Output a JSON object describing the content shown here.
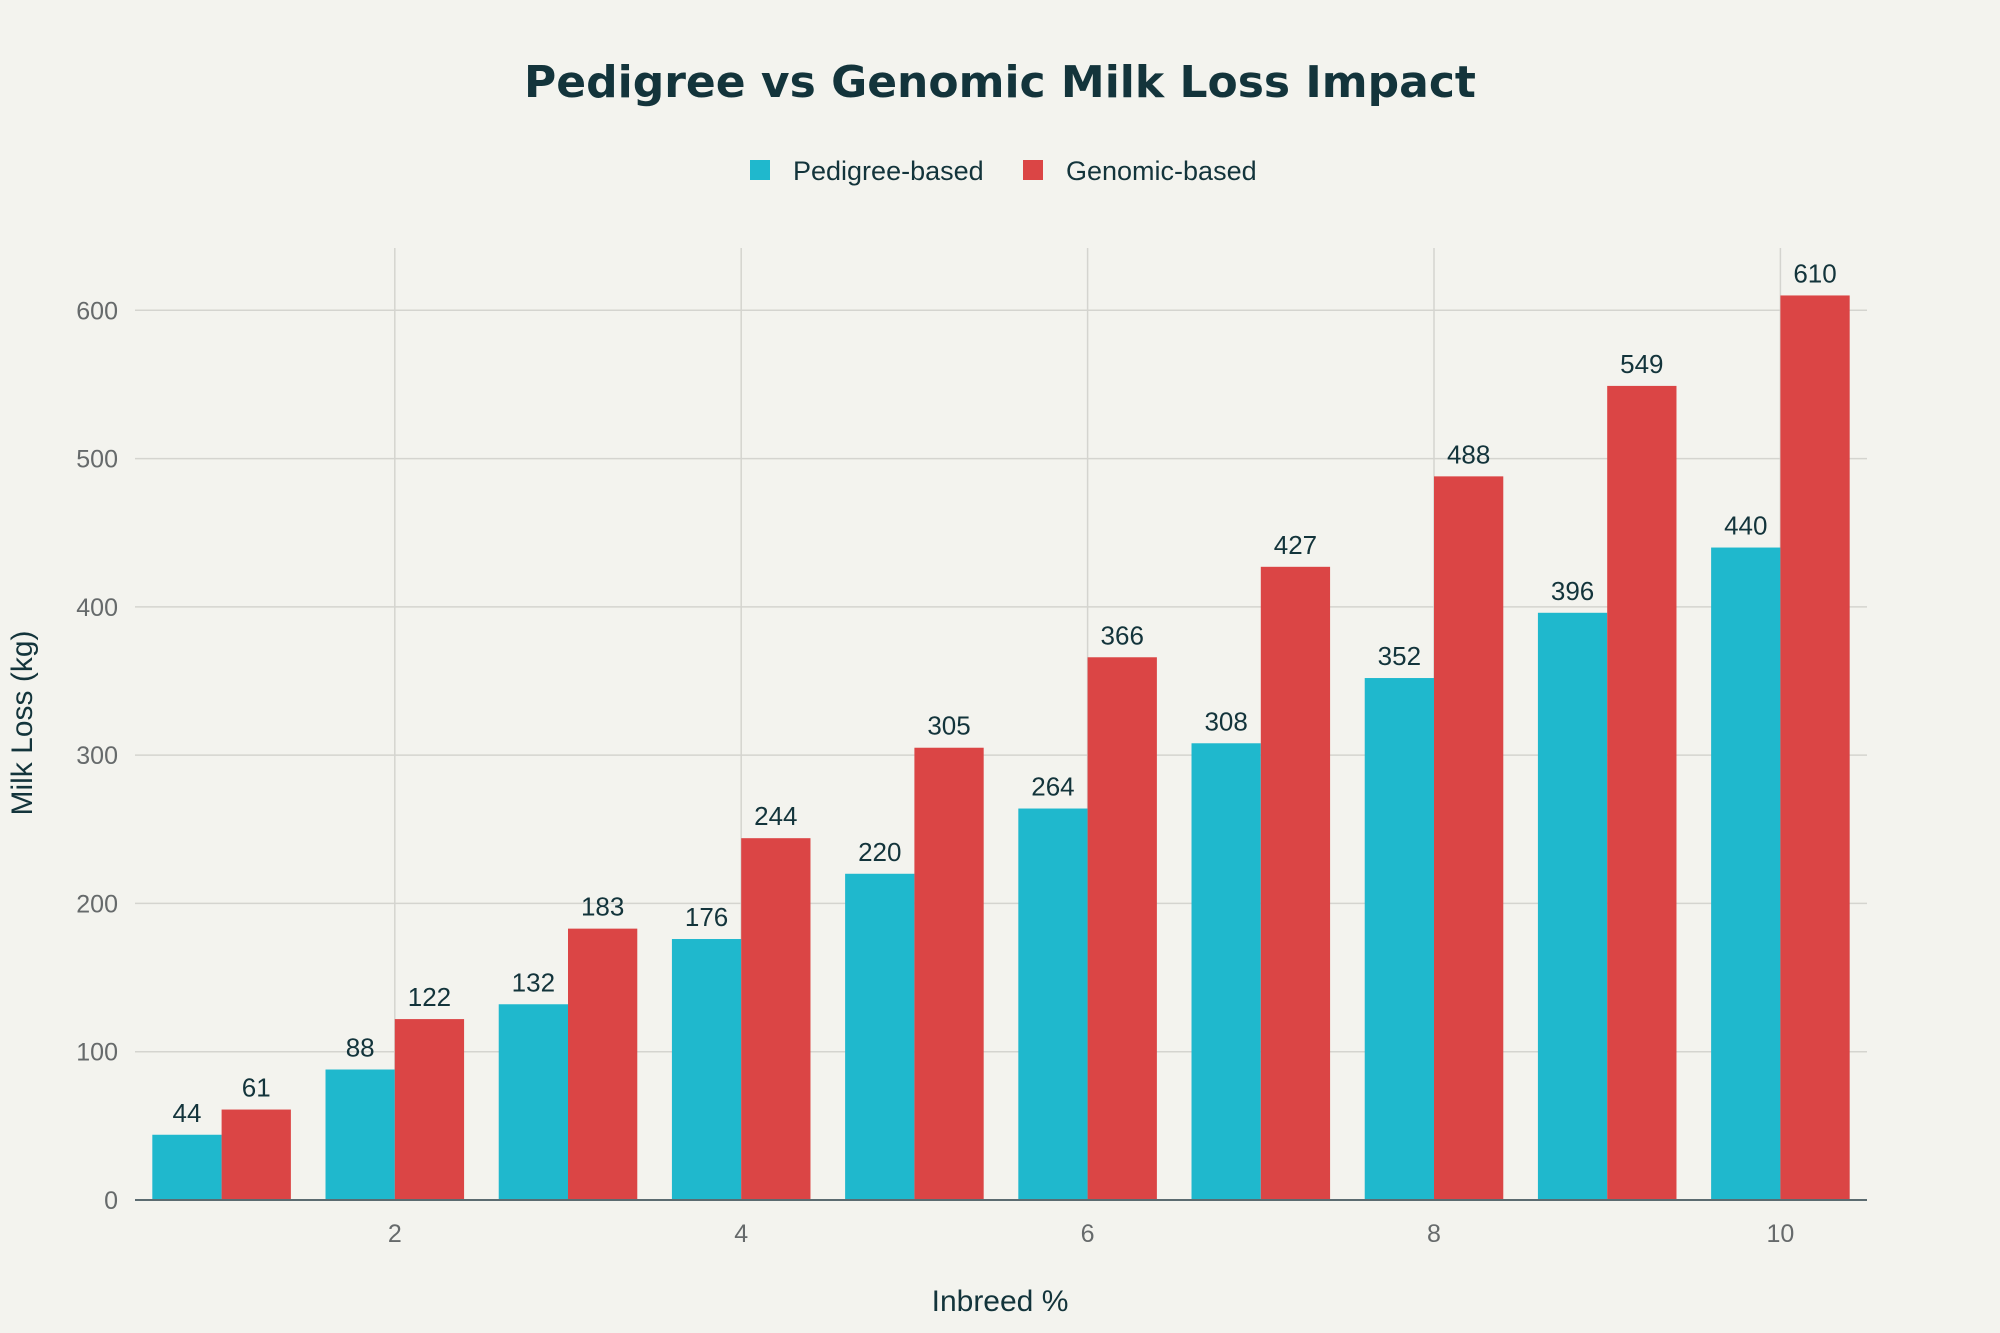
{
  "chart_data": {
    "type": "bar",
    "title": "Pedigree vs Genomic Milk Loss Impact",
    "xlabel": "Inbreed %",
    "ylabel": "Milk Loss (kg)",
    "x": [
      1,
      2,
      3,
      4,
      5,
      6,
      7,
      8,
      9,
      10
    ],
    "xticks": [
      2,
      4,
      6,
      8,
      10
    ],
    "yticks": [
      0,
      100,
      200,
      300,
      400,
      500,
      600
    ],
    "xlim": [
      -0.5,
      9.5
    ],
    "ylim": [
      0,
      642
    ],
    "grid": true,
    "legend_position": "top-center",
    "series": [
      {
        "name": "Pedigree-based",
        "color": "#1fb8cd",
        "values": [
          44,
          88,
          132,
          176,
          220,
          264,
          308,
          352,
          396,
          440
        ]
      },
      {
        "name": "Genomic-based",
        "color": "#db4545",
        "values": [
          61,
          122,
          183,
          244,
          305,
          366,
          427,
          488,
          549,
          610
        ]
      }
    ]
  }
}
